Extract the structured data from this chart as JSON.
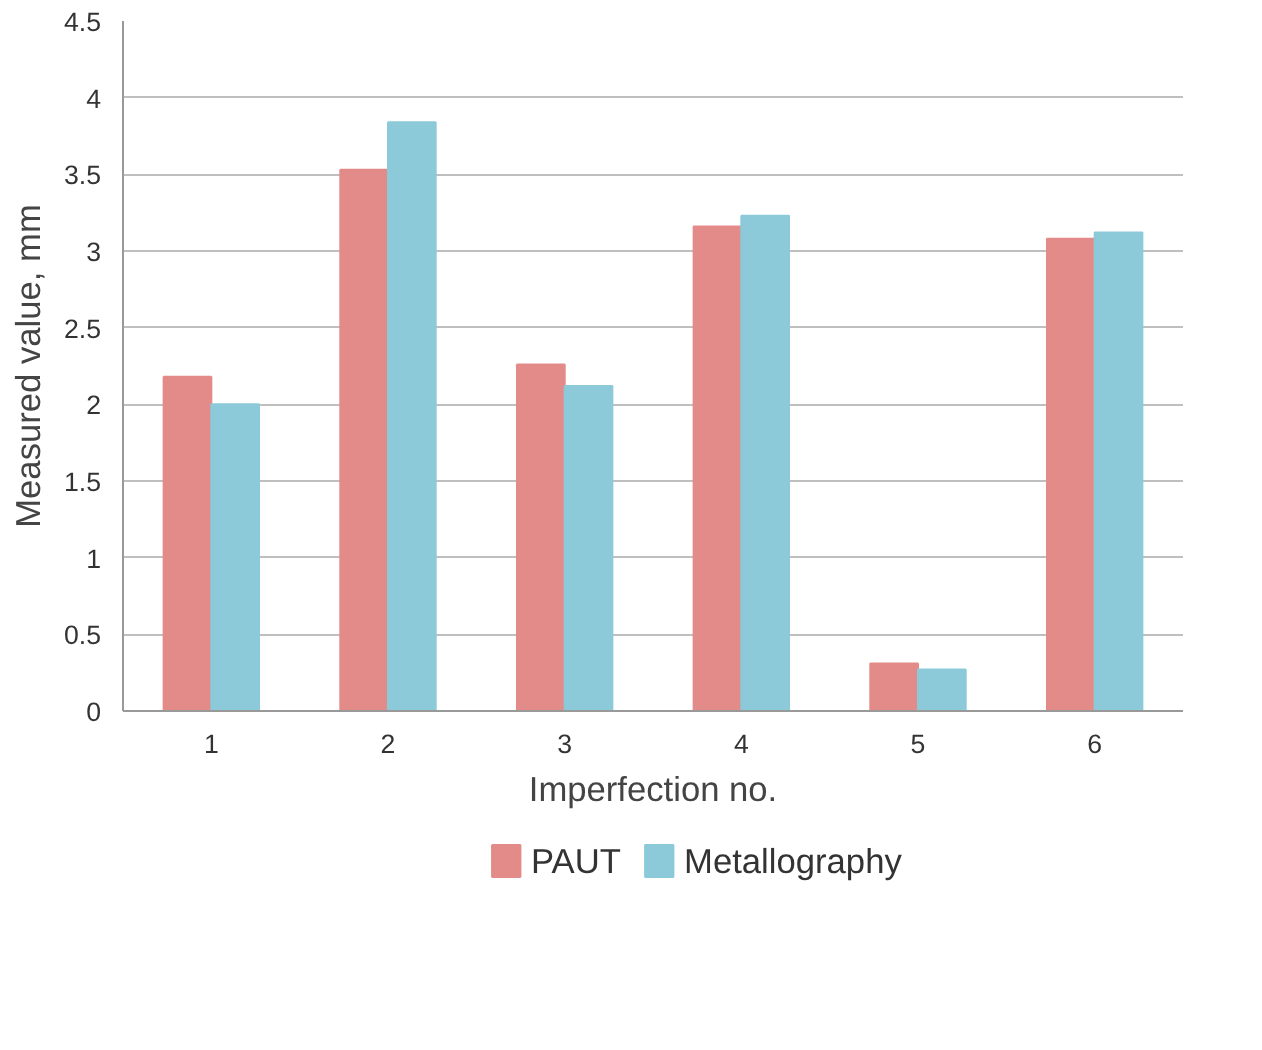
{
  "chart_data": {
    "type": "bar",
    "xlabel": "Imperfection no.",
    "ylabel": "Measured value, mm",
    "categories": [
      "1",
      "2",
      "3",
      "4",
      "5",
      "6"
    ],
    "series": [
      {
        "name": "PAUT",
        "color": "#e38b88",
        "values": [
          2.18,
          3.53,
          2.26,
          3.16,
          0.31,
          3.08
        ]
      },
      {
        "name": "Metallography",
        "color": "#8ccad9",
        "values": [
          2.0,
          3.84,
          2.12,
          3.23,
          0.27,
          3.12
        ]
      }
    ],
    "ylim": [
      0,
      4.5
    ],
    "yticks": [
      0,
      0.5,
      1,
      1.5,
      2,
      2.5,
      3,
      3.5,
      4,
      4.5
    ],
    "grid": "y",
    "legend": "bottom"
  }
}
